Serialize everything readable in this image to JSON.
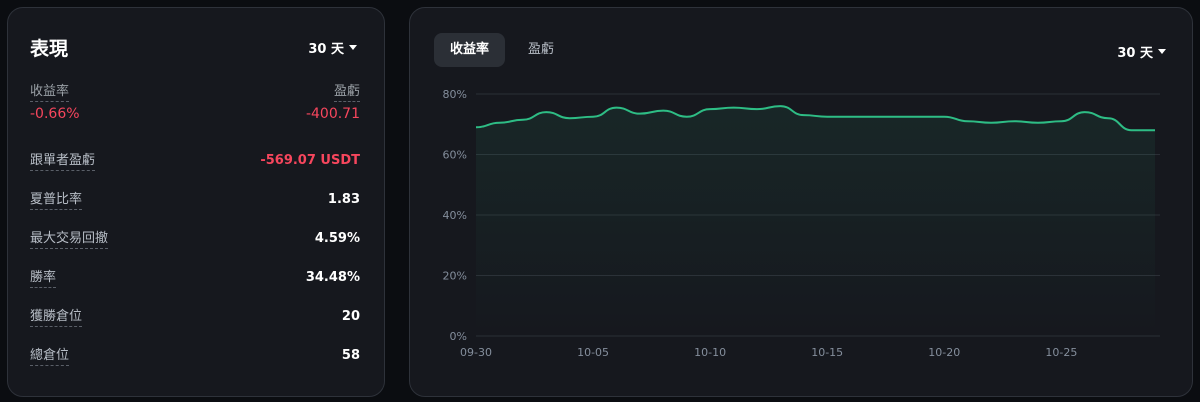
{
  "performance": {
    "title": "表現",
    "period": "30 天",
    "roi_label": "收益率",
    "roi_value": "-0.66%",
    "pnl_label": "盈虧",
    "pnl_value": "-400.71",
    "stats": [
      {
        "label": "跟單者盈虧",
        "value": "-569.07 USDT",
        "negative": true
      },
      {
        "label": "夏普比率",
        "value": "1.83",
        "negative": false
      },
      {
        "label": "最大交易回撤",
        "value": "4.59%",
        "negative": false
      },
      {
        "label": "勝率",
        "value": "34.48%",
        "negative": false
      },
      {
        "label": "獲勝倉位",
        "value": "20",
        "negative": false
      },
      {
        "label": "總倉位",
        "value": "58",
        "negative": false
      }
    ]
  },
  "chart_panel": {
    "tabs": [
      {
        "label": "收益率",
        "active": true
      },
      {
        "label": "盈虧",
        "active": false
      }
    ],
    "period": "30 天"
  },
  "colors": {
    "line": "#2ebd85",
    "negative": "#f6465d",
    "grid": "#2b2f36"
  },
  "chart_data": {
    "type": "area",
    "yticks": [
      "0%",
      "20%",
      "40%",
      "60%",
      "80%"
    ],
    "ylim": [
      0,
      80
    ],
    "xticks": [
      "09-30",
      "10-05",
      "10-10",
      "10-15",
      "10-20",
      "10-25"
    ],
    "x": [
      "09-30",
      "10-01",
      "10-02",
      "10-03",
      "10-04",
      "10-05",
      "10-06",
      "10-07",
      "10-08",
      "10-09",
      "10-10",
      "10-11",
      "10-12",
      "10-13",
      "10-14",
      "10-15",
      "10-16",
      "10-17",
      "10-18",
      "10-19",
      "10-20",
      "10-21",
      "10-22",
      "10-23",
      "10-24",
      "10-25",
      "10-26",
      "10-27",
      "10-28",
      "10-29"
    ],
    "values": [
      69,
      70.5,
      71.5,
      74,
      72,
      72.5,
      75.5,
      73.5,
      74.5,
      72.5,
      75,
      75.5,
      75,
      76,
      73,
      72.5,
      72.5,
      72.5,
      72.5,
      72.5,
      72.5,
      71,
      70.5,
      71,
      70.5,
      71,
      74,
      72,
      68,
      68
    ],
    "grid": true
  }
}
